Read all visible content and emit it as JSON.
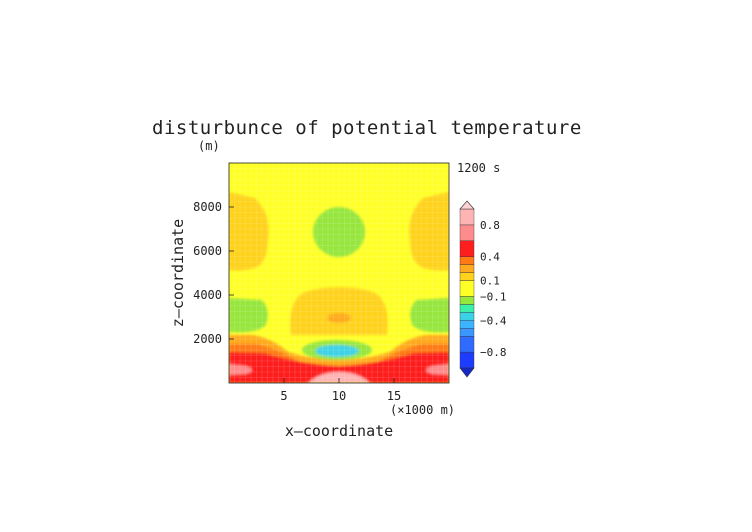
{
  "chart_data": {
    "type": "heatmap",
    "title": "disturbunce of potential temperature",
    "y_unit": "(m)",
    "time_label": "1200 s",
    "xlabel": "x—coordinate",
    "ylabel": "z—coordinate",
    "x_unit": "(×1000 m)",
    "xlim": [
      0,
      20
    ],
    "ylim": [
      0,
      10000
    ],
    "x_ticks": [
      5,
      10,
      15
    ],
    "x_tick_labels": [
      "5",
      "10",
      "15"
    ],
    "y_ticks": [
      2000,
      4000,
      6000,
      8000
    ],
    "y_tick_labels": [
      "2000",
      "4000",
      "6000",
      "8000"
    ],
    "colorbar": {
      "labels": [
        "0.8",
        "0.4",
        "0.1",
        "−0.1",
        "−0.4",
        "−0.8"
      ],
      "label_values": [
        0.8,
        0.4,
        0.1,
        -0.1,
        -0.4,
        -0.8
      ],
      "levels": [
        -1.0,
        -0.8,
        -0.6,
        -0.5,
        -0.4,
        -0.3,
        -0.2,
        -0.1,
        0.1,
        0.2,
        0.3,
        0.4,
        0.6,
        0.8,
        1.0
      ],
      "colors": [
        "#1e3cff",
        "#2f6bff",
        "#3c96ff",
        "#3cb4ff",
        "#3cd2e6",
        "#3cf0aa",
        "#96e63c",
        "#ffff28",
        "#ffd21e",
        "#ffaa1e",
        "#ff7a14",
        "#ff1e1e",
        "#ff8c8c",
        "#ffb4b4"
      ],
      "under_color": "#1428c8",
      "over_color": "#ffd2d2"
    }
  }
}
